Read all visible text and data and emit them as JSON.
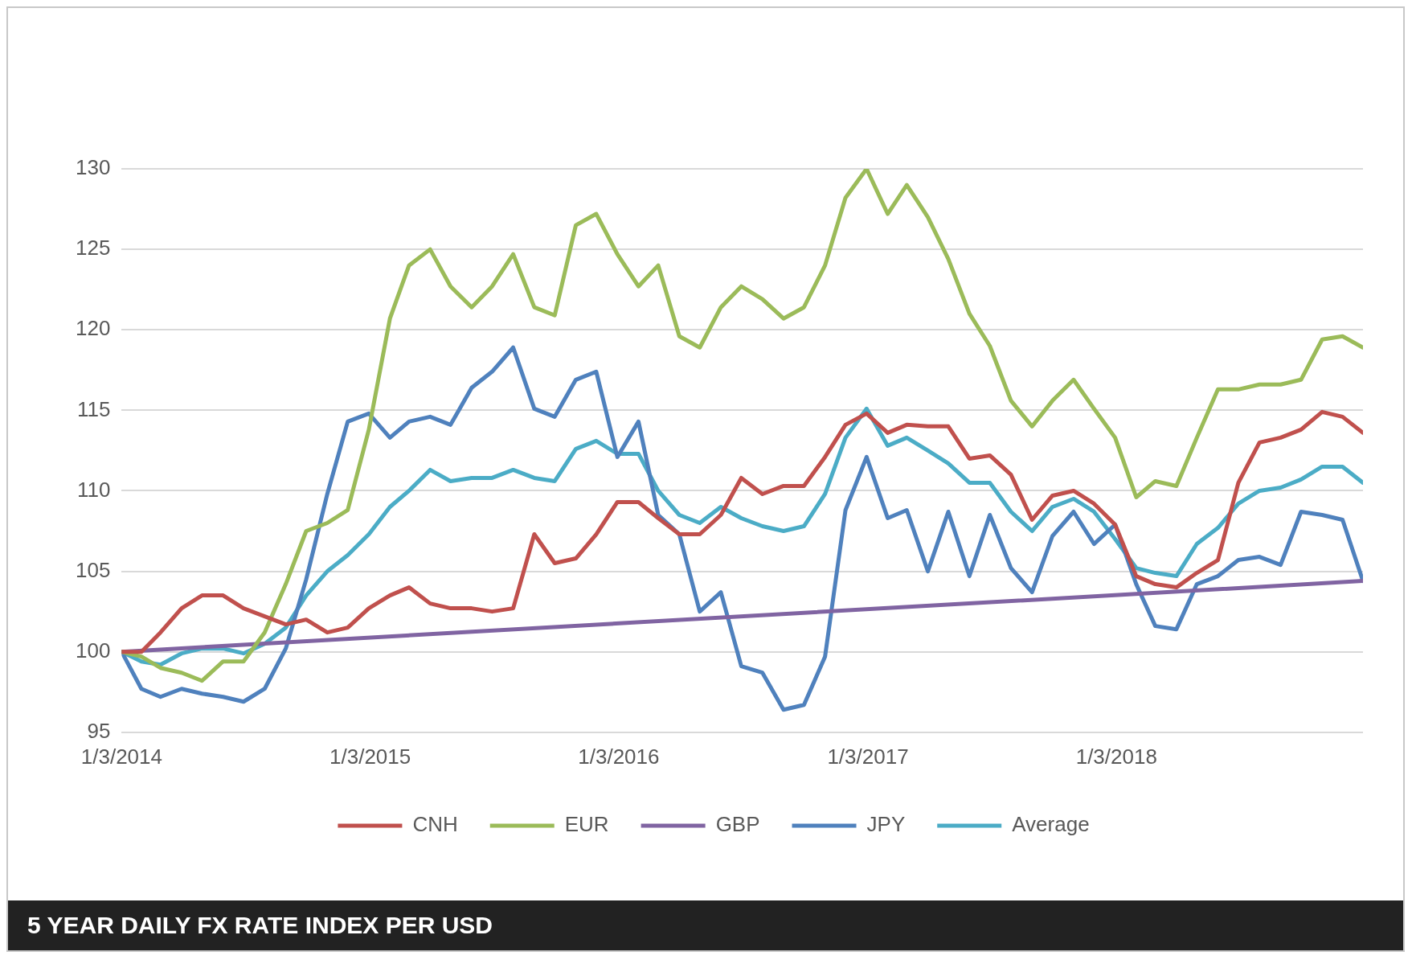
{
  "chart_data": {
    "type": "line",
    "title": "5 YEAR DAILY FX RATE INDEX PER USD",
    "x": [
      "2014-01-03",
      "2014-02",
      "2014-03",
      "2014-04",
      "2014-05",
      "2014-06",
      "2014-07",
      "2014-08",
      "2014-09",
      "2014-10",
      "2014-11",
      "2014-12",
      "2015-01",
      "2015-02",
      "2015-03",
      "2015-04",
      "2015-05",
      "2015-06",
      "2015-07",
      "2015-08",
      "2015-09",
      "2015-10",
      "2015-11",
      "2015-12",
      "2016-01",
      "2016-02",
      "2016-03",
      "2016-04",
      "2016-05",
      "2016-06",
      "2016-07",
      "2016-08",
      "2016-09",
      "2016-10",
      "2016-11",
      "2016-12",
      "2017-01",
      "2017-02",
      "2017-03",
      "2017-04",
      "2017-05",
      "2017-06",
      "2017-07",
      "2017-08",
      "2017-09",
      "2017-10",
      "2017-11",
      "2017-12",
      "2018-01",
      "2018-02",
      "2018-03",
      "2018-04",
      "2018-05",
      "2018-06",
      "2018-07",
      "2018-08",
      "2018-09",
      "2018-10",
      "2018-11",
      "2018-12",
      "2018-12-31"
    ],
    "series": [
      {
        "name": "CNH",
        "color": "#c0504d",
        "values": [
          100,
          100,
          101.2,
          102.7,
          103.5,
          103.5,
          102.7,
          102.2,
          101.7,
          102,
          101.2,
          101.5,
          102.7,
          103.5,
          104,
          103,
          102.7,
          102.7,
          102.5,
          102.7,
          107.3,
          105.5,
          105.8,
          107.3,
          109.3,
          109.3,
          108.3,
          107.3,
          107.3,
          108.5,
          110.8,
          109.8,
          110.3,
          110.3,
          112.1,
          114.1,
          114.8,
          113.6,
          114.1,
          114,
          114,
          112,
          112.2,
          111,
          108.2,
          109.7,
          110,
          109.2,
          107.9,
          104.7,
          104.2,
          104,
          104.9,
          105.7,
          110.5,
          113,
          113.3,
          113.8,
          114.9,
          114.6,
          113.6
        ]
      },
      {
        "name": "EUR",
        "color": "#9bbb59",
        "values": [
          100,
          99.7,
          99,
          98.7,
          98.2,
          99.4,
          99.4,
          101.2,
          104.2,
          107.5,
          108,
          108.8,
          113.8,
          120.7,
          124,
          125,
          122.7,
          121.4,
          122.7,
          124.7,
          121.4,
          120.9,
          126.5,
          127.2,
          124.7,
          122.7,
          124,
          119.6,
          118.9,
          121.4,
          122.7,
          121.9,
          120.7,
          121.4,
          124,
          128.2,
          130,
          127.2,
          129,
          127,
          124.4,
          121,
          119,
          115.6,
          114,
          115.6,
          116.9,
          115.1,
          113.3,
          109.6,
          110.6,
          110.3,
          113.3,
          116.3,
          116.3,
          116.6,
          116.6,
          116.9,
          119.4,
          119.6,
          118.9
        ]
      },
      {
        "name": "GBP",
        "color": "#8064a2",
        "x": [
          "2014-01-03",
          "2018-12-31"
        ],
        "values": [
          100,
          104.4
        ]
      },
      {
        "name": "JPY",
        "color": "#4f81bd",
        "values": [
          100,
          97.7,
          97.2,
          97.7,
          97.4,
          97.2,
          96.9,
          97.7,
          100.2,
          104.5,
          109.8,
          114.3,
          114.8,
          113.3,
          114.3,
          114.6,
          114.1,
          116.4,
          117.4,
          118.9,
          115.1,
          114.6,
          116.9,
          117.4,
          112.1,
          114.3,
          108.5,
          107.3,
          102.5,
          103.7,
          99.1,
          98.7,
          96.4,
          96.7,
          99.7,
          108.8,
          112.1,
          108.3,
          108.8,
          105,
          108.7,
          104.7,
          108.5,
          105.2,
          103.7,
          107.2,
          108.7,
          106.7,
          107.9,
          104.2,
          101.6,
          101.4,
          104.2,
          104.7,
          105.7,
          105.9,
          105.4,
          108.7,
          108.5,
          108.2,
          104.4
        ]
      },
      {
        "name": "Average",
        "color": "#4bacc6",
        "values": [
          100,
          99.4,
          99.2,
          99.9,
          100.2,
          100.2,
          99.9,
          100.5,
          101.5,
          103.5,
          105,
          106,
          107.3,
          109,
          110,
          111.3,
          110.6,
          110.8,
          110.8,
          111.3,
          110.8,
          110.6,
          112.6,
          113.1,
          112.3,
          112.3,
          110,
          108.5,
          108,
          109,
          108.3,
          107.8,
          107.5,
          107.8,
          109.8,
          113.3,
          115.1,
          112.8,
          113.3,
          112.5,
          111.7,
          110.5,
          110.5,
          108.7,
          107.5,
          109,
          109.5,
          108.7,
          107,
          105.2,
          104.9,
          104.7,
          106.7,
          107.7,
          109.2,
          110,
          110.2,
          110.7,
          111.5,
          111.5,
          110.5
        ]
      }
    ],
    "xlim": [
      "2014-01-03",
      "2018-12-31"
    ],
    "xticks": [
      {
        "value": "2014-01-03",
        "label": "1/3/2014"
      },
      {
        "value": "2015-01-03",
        "label": "1/3/2015"
      },
      {
        "value": "2016-01-03",
        "label": "1/3/2016"
      },
      {
        "value": "2017-01-03",
        "label": "1/3/2017"
      },
      {
        "value": "2018-01-03",
        "label": "1/3/2018"
      }
    ],
    "ylim": [
      95,
      130
    ],
    "yticks": [
      95,
      100,
      105,
      110,
      115,
      120,
      125,
      130
    ],
    "grid": "y",
    "legend": "bottom",
    "marker": "none",
    "line_style": "solid"
  }
}
